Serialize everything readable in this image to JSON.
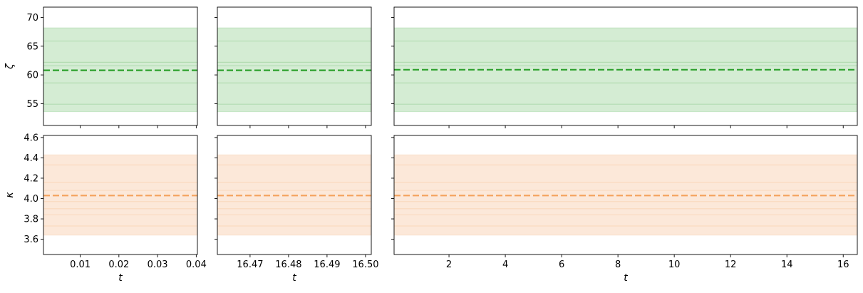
{
  "chart_data": [
    {
      "type": "line",
      "row": "zeta",
      "ylabel": "ζ",
      "xlabel": "",
      "xlim": [
        0.0005,
        0.0403
      ],
      "ylim": [
        51.2,
        71.8
      ],
      "xticks": [],
      "xtick_labels": [],
      "yticks": [
        55,
        60,
        65,
        70
      ],
      "ytick_labels": [
        "55",
        "60",
        "65",
        "70"
      ],
      "band": {
        "lower": 53.6,
        "upper": 68.2
      },
      "sample_lines": [
        54.9,
        58.6,
        61.6,
        62.2,
        65.9
      ],
      "mean_line": {
        "value": 60.8,
        "style": "dashed"
      },
      "color": "#2ca02c",
      "band_color": "#d4ecd3"
    },
    {
      "type": "line",
      "row": "zeta",
      "ylabel": "",
      "xlabel": "",
      "xlim": [
        16.4615,
        16.5015
      ],
      "ylim": [
        51.2,
        71.8
      ],
      "xticks": [],
      "xtick_labels": [],
      "yticks": [],
      "ytick_labels": [],
      "band": {
        "lower": 53.6,
        "upper": 68.2
      },
      "sample_lines": [
        54.9,
        58.6,
        61.6,
        62.2,
        65.9
      ],
      "mean_line": {
        "value": 60.8,
        "style": "dashed"
      },
      "color": "#2ca02c",
      "band_color": "#d4ecd3"
    },
    {
      "type": "line",
      "row": "zeta",
      "ylabel": "",
      "xlabel": "",
      "xlim": [
        0.05,
        16.5
      ],
      "ylim": [
        51.2,
        71.8
      ],
      "xticks": [],
      "xtick_labels": [],
      "yticks": [],
      "ytick_labels": [],
      "band": {
        "lower": 53.6,
        "upper": 68.2
      },
      "sample_lines": [
        54.9,
        58.6,
        61.6,
        62.2,
        65.9
      ],
      "mean_line": {
        "value": 60.9,
        "style": "dashed"
      },
      "color": "#2ca02c",
      "band_color": "#d4ecd3"
    },
    {
      "type": "line",
      "row": "kappa",
      "ylabel": "κ",
      "xlabel": "t",
      "xlim": [
        0.0005,
        0.0403
      ],
      "ylim": [
        3.45,
        4.62
      ],
      "xticks": [
        0.01,
        0.02,
        0.03,
        0.04
      ],
      "xtick_labels": [
        "0.01",
        "0.02",
        "0.03",
        "0.04"
      ],
      "yticks": [
        3.6,
        3.8,
        4.0,
        4.2,
        4.4,
        4.6
      ],
      "ytick_labels": [
        "3.6",
        "3.8",
        "4.0",
        "4.2",
        "4.4",
        "4.6"
      ],
      "band": {
        "lower": 3.64,
        "upper": 4.43
      },
      "sample_lines": [
        3.73,
        3.84,
        3.9,
        3.97,
        4.08,
        4.16,
        4.33
      ],
      "mean_line": {
        "value": 4.03,
        "style": "dashed"
      },
      "color": "#f4a460",
      "band_color": "#fce8d9"
    },
    {
      "type": "line",
      "row": "kappa",
      "ylabel": "",
      "xlabel": "t",
      "xlim": [
        16.4615,
        16.5015
      ],
      "ylim": [
        3.45,
        4.62
      ],
      "xticks": [
        16.47,
        16.48,
        16.49,
        16.5
      ],
      "xtick_labels": [
        "16.47",
        "16.48",
        "16.49",
        "16.50"
      ],
      "yticks": [],
      "ytick_labels": [],
      "band": {
        "lower": 3.64,
        "upper": 4.43
      },
      "sample_lines": [
        3.73,
        3.84,
        3.9,
        3.97,
        4.08,
        4.16,
        4.33
      ],
      "mean_line": {
        "value": 4.03,
        "style": "dashed"
      },
      "color": "#f4a460",
      "band_color": "#fce8d9"
    },
    {
      "type": "line",
      "row": "kappa",
      "ylabel": "",
      "xlabel": "t",
      "xlim": [
        0.05,
        16.5
      ],
      "ylim": [
        3.45,
        4.62
      ],
      "xticks": [
        2,
        4,
        6,
        8,
        10,
        12,
        14,
        16
      ],
      "xtick_labels": [
        "2",
        "4",
        "6",
        "8",
        "10",
        "12",
        "14",
        "16"
      ],
      "yticks": [],
      "ytick_labels": [],
      "band": {
        "lower": 3.64,
        "upper": 4.43
      },
      "sample_lines": [
        3.73,
        3.84,
        3.9,
        3.97,
        4.08,
        4.16,
        4.33
      ],
      "mean_line": {
        "value": 4.03,
        "style": "dashed"
      },
      "color": "#f4a460",
      "band_color": "#fce8d9"
    }
  ]
}
